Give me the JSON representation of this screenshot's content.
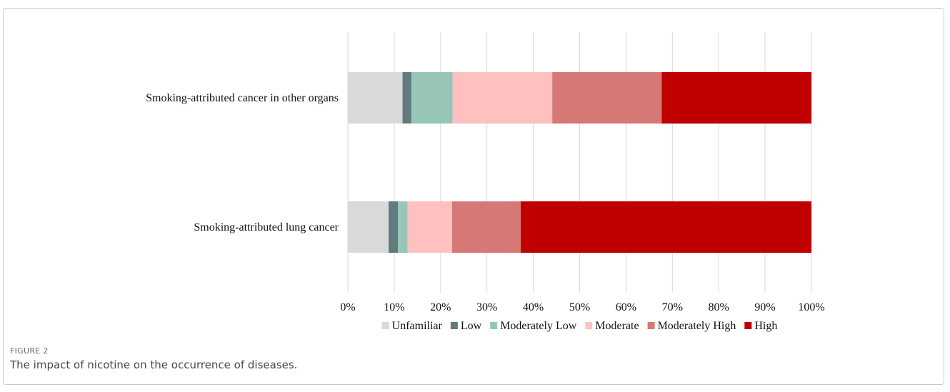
{
  "figure": {
    "label": "FIGURE 2",
    "caption": "The impact of nicotine on the occurrence of diseases."
  },
  "chart_data": {
    "type": "bar",
    "orientation": "horizontal",
    "stacked": "percent",
    "categories": [
      "Smoking-attributed cancer in other organs",
      "Smoking-attributed lung cancer"
    ],
    "series": [
      {
        "name": "Unfamiliar",
        "color": "#d9d9d9",
        "values": [
          11.8,
          8.8
        ]
      },
      {
        "name": "Low",
        "color": "#5f7b7b",
        "values": [
          1.9,
          2.0
        ]
      },
      {
        "name": "Moderately Low",
        "color": "#97c6b8",
        "values": [
          8.9,
          2.1
        ]
      },
      {
        "name": "Moderate",
        "color": "#ffc0c0",
        "values": [
          21.5,
          9.6
        ]
      },
      {
        "name": "Moderately High",
        "color": "#d57876",
        "values": [
          23.6,
          14.8
        ]
      },
      {
        "name": "High",
        "color": "#c00000",
        "values": [
          32.3,
          62.7
        ]
      }
    ],
    "xticks": [
      "0%",
      "10%",
      "20%",
      "30%",
      "40%",
      "50%",
      "60%",
      "70%",
      "80%",
      "90%",
      "100%"
    ],
    "xlim": [
      0,
      100
    ],
    "grid": "vertical",
    "legend": "bottom"
  }
}
